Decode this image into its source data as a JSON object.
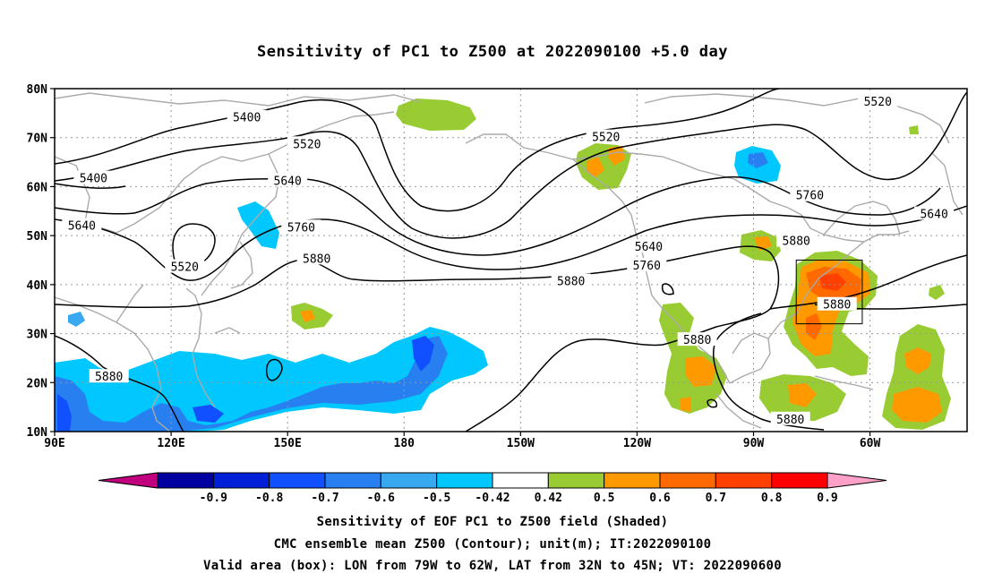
{
  "title": "Sensitivity of PC1 to Z500 at 2022090100 +5.0 day",
  "lat_labels": [
    "80N",
    "70N",
    "60N",
    "50N",
    "40N",
    "30N",
    "20N",
    "10N"
  ],
  "lon_labels": [
    "90E",
    "120E",
    "150E",
    "180",
    "150W",
    "120W",
    "90W",
    "60W"
  ],
  "contour_labels": [
    {
      "text": "5400",
      "lon": 139.5,
      "lat": 74.2
    },
    {
      "text": "5400",
      "lon": 100,
      "lat": 61.8
    },
    {
      "text": "5520",
      "lon": 155,
      "lat": 68.8
    },
    {
      "text": "5520",
      "lon": 232,
      "lat": 70.2
    },
    {
      "text": "5520",
      "lon": 302,
      "lat": 77.4
    },
    {
      "text": "5520",
      "lon": 123.5,
      "lat": 43.7
    },
    {
      "text": "5640",
      "lon": 97,
      "lat": 52.1
    },
    {
      "text": "5640",
      "lon": 150,
      "lat": 61.3
    },
    {
      "text": "5640",
      "lon": 243,
      "lat": 47.8
    },
    {
      "text": "5640",
      "lon": 316.5,
      "lat": 54.5
    },
    {
      "text": "5760",
      "lon": 153.5,
      "lat": 51.8
    },
    {
      "text": "5760",
      "lon": 242.5,
      "lat": 44.0
    },
    {
      "text": "5760",
      "lon": 284.5,
      "lat": 58.3
    },
    {
      "text": "5880",
      "lon": 157.5,
      "lat": 45.4
    },
    {
      "text": "5880",
      "lon": 223,
      "lat": 40.8
    },
    {
      "text": "5880",
      "lon": 281,
      "lat": 49.0
    },
    {
      "text": "5880",
      "lon": 291.5,
      "lat": 36.0
    },
    {
      "text": "5880",
      "lon": 255.5,
      "lat": 28.8
    },
    {
      "text": "5880",
      "lon": 279.5,
      "lat": 12.6
    },
    {
      "text": "5880",
      "lon": 104,
      "lat": 21.3
    }
  ],
  "valid_box": {
    "lon_from": 281,
    "lon_to": 298,
    "lat_from": 32,
    "lat_to": 45
  },
  "colorbar": {
    "labels": [
      "-0.9",
      "-0.8",
      "-0.7",
      "-0.6",
      "-0.5",
      "-0.42",
      "0.42",
      "0.5",
      "0.6",
      "0.7",
      "0.8",
      "0.9"
    ],
    "colors": [
      "#c0007f",
      "#0000a0",
      "#0020d8",
      "#1050ff",
      "#2880f0",
      "#38a8f0",
      "#00c8ff",
      "#ffffff",
      "#99cc33",
      "#ff9900",
      "#ff6a00",
      "#ff4000",
      "#ff0000",
      "#ffa0c8"
    ]
  },
  "captions": {
    "line1": "Sensitivity of EOF PC1 to Z500 field (Shaded)",
    "line2": "CMC ensemble mean Z500 (Contour); unit(m); IT:2022090100",
    "line3": "Valid area (box): LON from 79W to 62W, LAT from 32N to 45N; VT: 2022090600"
  }
}
